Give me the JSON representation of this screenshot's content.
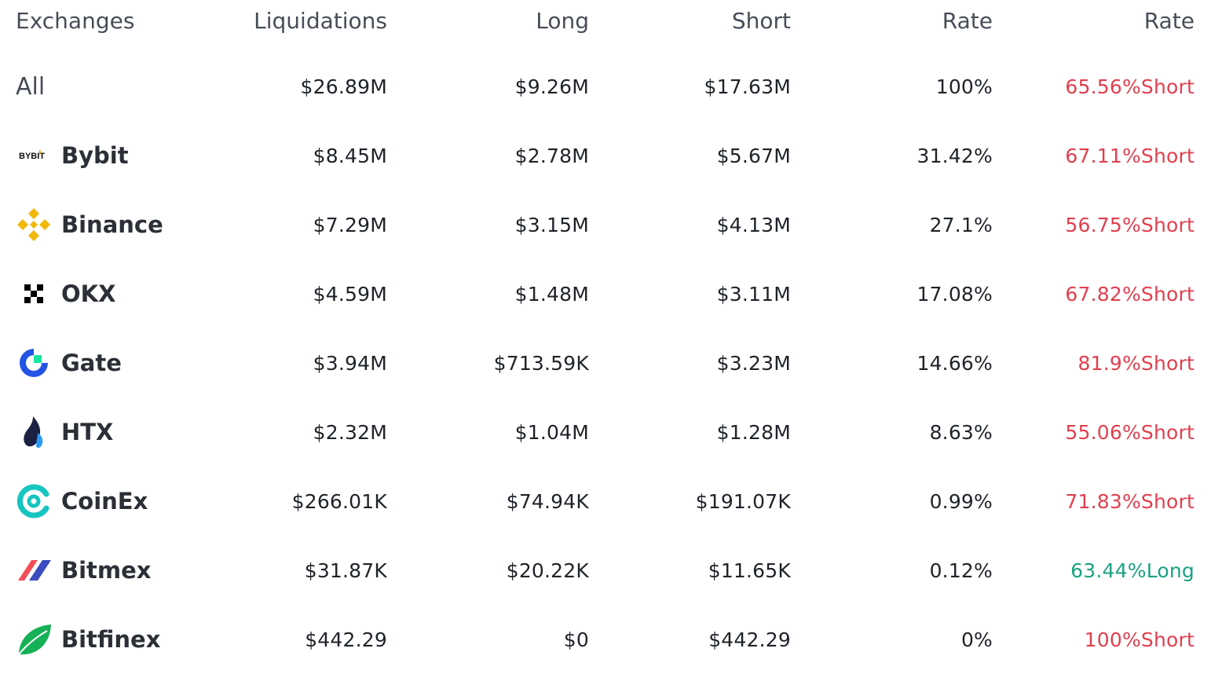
{
  "headers": [
    "Exchanges",
    "Liquidations",
    "Long",
    "Short",
    "Rate",
    "Rate"
  ],
  "all": {
    "label": "All",
    "liquidations": "$26.89M",
    "long": "$9.26M",
    "short": "$17.63M",
    "rate": "100%",
    "side_rate": "65.56%Short",
    "side": "short"
  },
  "exchanges": [
    {
      "name": "Bybit",
      "icon": "bybit-logo-icon",
      "liquidations": "$8.45M",
      "long": "$2.78M",
      "short": "$5.67M",
      "rate": "31.42%",
      "side_rate": "67.11%Short",
      "side": "short",
      "logo_text": "BYBIT"
    },
    {
      "name": "Binance",
      "icon": "binance-logo-icon",
      "liquidations": "$7.29M",
      "long": "$3.15M",
      "short": "$4.13M",
      "rate": "27.1%",
      "side_rate": "56.75%Short",
      "side": "short"
    },
    {
      "name": "OKX",
      "icon": "okx-logo-icon",
      "liquidations": "$4.59M",
      "long": "$1.48M",
      "short": "$3.11M",
      "rate": "17.08%",
      "side_rate": "67.82%Short",
      "side": "short"
    },
    {
      "name": "Gate",
      "icon": "gate-logo-icon",
      "liquidations": "$3.94M",
      "long": "$713.59K",
      "short": "$3.23M",
      "rate": "14.66%",
      "side_rate": "81.9%Short",
      "side": "short"
    },
    {
      "name": "HTX",
      "icon": "htx-logo-icon",
      "liquidations": "$2.32M",
      "long": "$1.04M",
      "short": "$1.28M",
      "rate": "8.63%",
      "side_rate": "55.06%Short",
      "side": "short"
    },
    {
      "name": "CoinEx",
      "icon": "coinex-logo-icon",
      "liquidations": "$266.01K",
      "long": "$74.94K",
      "short": "$191.07K",
      "rate": "0.99%",
      "side_rate": "71.83%Short",
      "side": "short"
    },
    {
      "name": "Bitmex",
      "icon": "bitmex-logo-icon",
      "liquidations": "$31.87K",
      "long": "$20.22K",
      "short": "$11.65K",
      "rate": "0.12%",
      "side_rate": "63.44%Long",
      "side": "long"
    },
    {
      "name": "Bitfinex",
      "icon": "bitfinex-logo-icon",
      "liquidations": "$442.29",
      "long": "$0",
      "short": "$442.29",
      "rate": "0%",
      "side_rate": "100%Short",
      "side": "short"
    }
  ],
  "colors": {
    "short": "#e0404f",
    "long": "#1aa283",
    "text": "#1e2329",
    "header": "#474d57"
  }
}
